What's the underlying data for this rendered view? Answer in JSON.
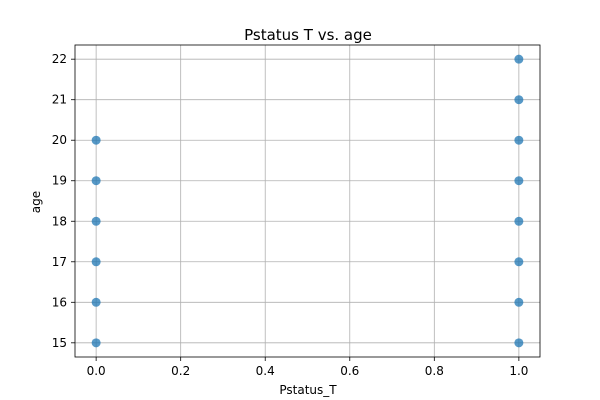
{
  "chart_data": {
    "type": "scatter",
    "title": "Pstatus T vs. age",
    "xlabel": "Pstatus_T",
    "ylabel": "age",
    "xlim": [
      -0.05,
      1.05
    ],
    "ylim": [
      14.65,
      22.35
    ],
    "xticks": [
      0.0,
      0.2,
      0.4,
      0.6,
      0.8,
      1.0
    ],
    "xtick_labels": [
      "0.0",
      "0.2",
      "0.4",
      "0.6",
      "0.8",
      "1.0"
    ],
    "yticks": [
      15,
      16,
      17,
      18,
      19,
      20,
      21,
      22
    ],
    "ytick_labels": [
      "15",
      "16",
      "17",
      "18",
      "19",
      "20",
      "21",
      "22"
    ],
    "grid": true,
    "point_color": "#1f77b4",
    "points": [
      {
        "x": 0,
        "y": 15
      },
      {
        "x": 0,
        "y": 16
      },
      {
        "x": 0,
        "y": 17
      },
      {
        "x": 0,
        "y": 18
      },
      {
        "x": 0,
        "y": 19
      },
      {
        "x": 0,
        "y": 20
      },
      {
        "x": 1,
        "y": 15
      },
      {
        "x": 1,
        "y": 16
      },
      {
        "x": 1,
        "y": 17
      },
      {
        "x": 1,
        "y": 18
      },
      {
        "x": 1,
        "y": 19
      },
      {
        "x": 1,
        "y": 20
      },
      {
        "x": 1,
        "y": 21
      },
      {
        "x": 1,
        "y": 22
      }
    ]
  }
}
